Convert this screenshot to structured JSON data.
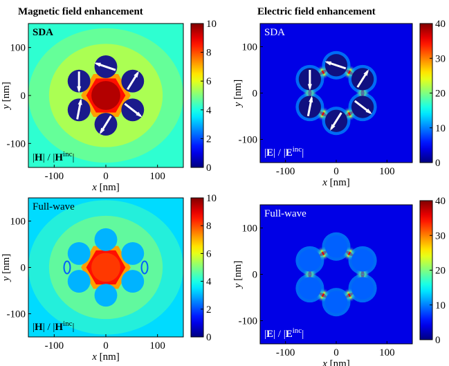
{
  "titles": {
    "magnetic": "Magnetic field enhancement",
    "electric": "Electric field enhancement"
  },
  "chart_data": [
    {
      "type": "heatmap",
      "label": "SDA",
      "quantity": {
        "field": "H",
        "sep": " / ",
        "inc_field": "H",
        "inc": "inc"
      },
      "xlabel": "x",
      "ylabel": "y",
      "unit": "[nm]",
      "xticks": [
        "-100",
        "0",
        "100"
      ],
      "yticks": [
        "100",
        "0",
        "-100"
      ],
      "xlim": [
        -150,
        150
      ],
      "ylim": [
        -150,
        150
      ],
      "colorbar": {
        "range": [
          0,
          10
        ],
        "ticks": [
          "10",
          "8",
          "6",
          "4",
          "2",
          "0"
        ]
      },
      "background_level": 4.2,
      "label_color": "#000000",
      "quantity_color": "#000000"
    },
    {
      "type": "heatmap",
      "label": "SDA",
      "quantity": {
        "field": "E",
        "sep": " / ",
        "inc_field": "E",
        "inc": "inc"
      },
      "xlabel": "x",
      "ylabel": "y",
      "unit": "[nm]",
      "xticks": [
        "-100",
        "0",
        "100"
      ],
      "yticks": [
        "100",
        "0",
        "-100"
      ],
      "xlim": [
        -150,
        150
      ],
      "ylim": [
        -150,
        150
      ],
      "colorbar": {
        "range": [
          0,
          40
        ],
        "ticks": [
          "40",
          "30",
          "20",
          "10",
          "0"
        ]
      },
      "background_level": 4,
      "label_color": "#ffffff",
      "quantity_color": "#ffffff"
    },
    {
      "type": "heatmap",
      "label": "Full-wave",
      "quantity": {
        "field": "H",
        "sep": " / ",
        "inc_field": "H",
        "inc": "inc"
      },
      "xlabel": "x",
      "ylabel": "y",
      "unit": "[nm]",
      "xticks": [
        "-100",
        "0",
        "100"
      ],
      "yticks": [
        "100",
        "0",
        "-100"
      ],
      "xlim": [
        -150,
        150
      ],
      "ylim": [
        -150,
        150
      ],
      "colorbar": {
        "range": [
          0,
          10
        ],
        "ticks": [
          "10",
          "8",
          "6",
          "4",
          "2",
          "0"
        ]
      },
      "background_level": 3.4,
      "label_color": "#000000",
      "quantity_color": "#000000"
    },
    {
      "type": "heatmap",
      "label": "Full-wave",
      "quantity": {
        "field": "E",
        "sep": " / ",
        "inc_field": "E",
        "inc": "inc"
      },
      "xlabel": "x",
      "ylabel": "y",
      "unit": "[nm]",
      "xticks": [
        "-100",
        "0",
        "100"
      ],
      "yticks": [
        "100",
        "0",
        "-100"
      ],
      "xlim": [
        -150,
        150
      ],
      "ylim": [
        -150,
        150
      ],
      "colorbar": {
        "range": [
          0,
          40
        ],
        "ticks": [
          "40",
          "30",
          "20",
          "10",
          "0"
        ]
      },
      "background_level": 4,
      "label_color": "#ffffff",
      "quantity_color": "#ffffff"
    }
  ]
}
